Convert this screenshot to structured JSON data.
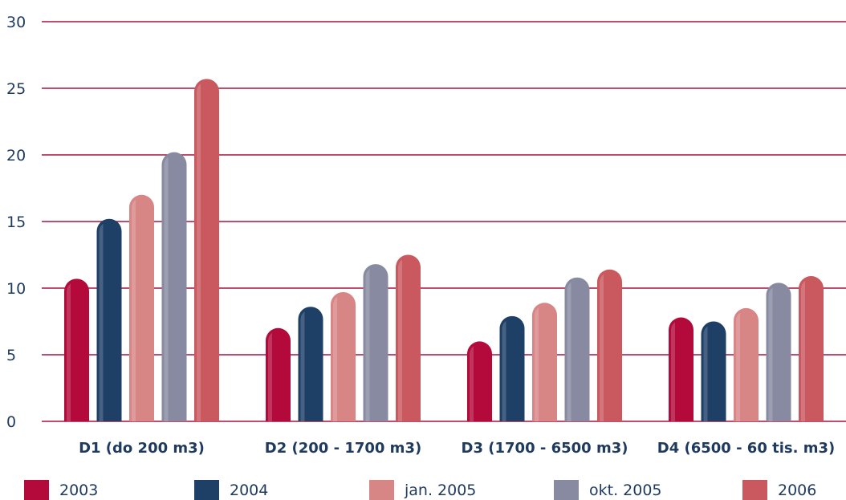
{
  "chart_data": {
    "type": "bar",
    "categories": [
      "D1 (do 200 m3)",
      "D2 (200 - 1700 m3)",
      "D3 (1700 - 6500 m3)",
      "D4 (6500 - 60 tis. m3)"
    ],
    "series": [
      {
        "name": "2003",
        "color": "#b3093b",
        "values": [
          10.7,
          7.0,
          6.0,
          7.8
        ]
      },
      {
        "name": "2004",
        "color": "#1e3f66",
        "values": [
          15.2,
          8.6,
          7.9,
          7.5
        ]
      },
      {
        "name": "jan. 2005",
        "color": "#d88585",
        "values": [
          17.0,
          9.7,
          8.9,
          8.5
        ]
      },
      {
        "name": "okt. 2005",
        "color": "#878aa0",
        "values": [
          20.2,
          11.8,
          10.8,
          10.4
        ]
      },
      {
        "name": "2006",
        "color": "#c9585f",
        "values": [
          25.7,
          12.5,
          11.4,
          10.9
        ]
      }
    ],
    "yticks": [
      "0",
      "5",
      "10",
      "15",
      "20",
      "25",
      "30"
    ],
    "ylim": [
      0,
      30
    ],
    "grid": true,
    "grid_color": "#a8123f",
    "legend_position": "bottom"
  }
}
